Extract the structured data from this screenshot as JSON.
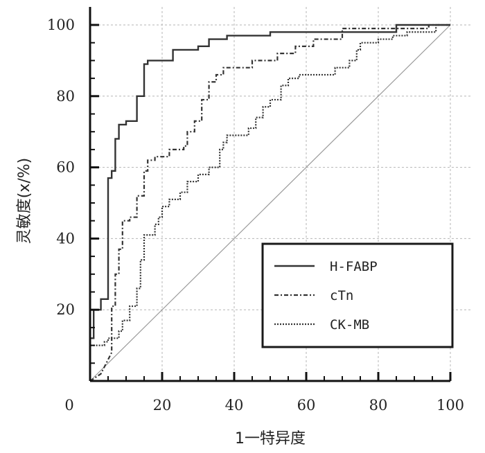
{
  "chart_data": {
    "type": "line",
    "title": "",
    "xlabel": "1一特异度",
    "ylabel": "灵敏度(x/%)",
    "xlim": [
      0,
      100
    ],
    "ylim": [
      0,
      100
    ],
    "xticks": [
      "0",
      "20",
      "40",
      "60",
      "80",
      "100"
    ],
    "yticks": [
      "20",
      "40",
      "60",
      "80",
      "100"
    ],
    "grid": true,
    "legend_position": "bottom-right",
    "series": [
      {
        "name": "H-FABP",
        "style": "solid",
        "color": "#333333",
        "points": [
          [
            0,
            0
          ],
          [
            0,
            12
          ],
          [
            1,
            12
          ],
          [
            1,
            20
          ],
          [
            3,
            20
          ],
          [
            3,
            23
          ],
          [
            5,
            23
          ],
          [
            5,
            57
          ],
          [
            6,
            57
          ],
          [
            6,
            59
          ],
          [
            7,
            59
          ],
          [
            7,
            68
          ],
          [
            8,
            68
          ],
          [
            8,
            72
          ],
          [
            10,
            72
          ],
          [
            10,
            73
          ],
          [
            13,
            73
          ],
          [
            13,
            80
          ],
          [
            15,
            80
          ],
          [
            15,
            89
          ],
          [
            16,
            89
          ],
          [
            16,
            90
          ],
          [
            23,
            90
          ],
          [
            23,
            93
          ],
          [
            30,
            93
          ],
          [
            30,
            94
          ],
          [
            33,
            94
          ],
          [
            33,
            96
          ],
          [
            38,
            96
          ],
          [
            38,
            97
          ],
          [
            50,
            97
          ],
          [
            50,
            98
          ],
          [
            85,
            98
          ],
          [
            85,
            100
          ],
          [
            100,
            100
          ]
        ]
      },
      {
        "name": "cTn",
        "style": "dashdot",
        "color": "#333333",
        "points": [
          [
            0,
            0
          ],
          [
            3,
            2
          ],
          [
            4,
            4
          ],
          [
            5,
            6
          ],
          [
            6,
            8
          ],
          [
            6,
            21
          ],
          [
            7,
            21
          ],
          [
            7,
            30
          ],
          [
            8,
            30
          ],
          [
            8,
            37
          ],
          [
            9,
            37
          ],
          [
            9,
            45
          ],
          [
            11,
            45
          ],
          [
            11,
            46
          ],
          [
            13,
            46
          ],
          [
            13,
            52
          ],
          [
            15,
            52
          ],
          [
            15,
            59
          ],
          [
            16,
            59
          ],
          [
            16,
            62
          ],
          [
            18,
            62
          ],
          [
            18,
            63
          ],
          [
            22,
            63
          ],
          [
            22,
            65
          ],
          [
            26,
            65
          ],
          [
            26,
            66
          ],
          [
            27,
            66
          ],
          [
            27,
            70
          ],
          [
            29,
            70
          ],
          [
            29,
            73
          ],
          [
            31,
            73
          ],
          [
            31,
            79
          ],
          [
            33,
            79
          ],
          [
            33,
            84
          ],
          [
            35,
            84
          ],
          [
            35,
            86
          ],
          [
            37,
            86
          ],
          [
            37,
            88
          ],
          [
            45,
            88
          ],
          [
            45,
            90
          ],
          [
            52,
            90
          ],
          [
            52,
            92
          ],
          [
            57,
            92
          ],
          [
            57,
            94
          ],
          [
            62,
            94
          ],
          [
            62,
            96
          ],
          [
            70,
            96
          ],
          [
            70,
            99
          ],
          [
            94,
            99
          ],
          [
            94,
            100
          ],
          [
            100,
            100
          ]
        ]
      },
      {
        "name": "CK-MB",
        "style": "dotted",
        "color": "#333333",
        "points": [
          [
            0,
            0
          ],
          [
            0,
            10
          ],
          [
            4,
            10
          ],
          [
            4,
            11
          ],
          [
            5,
            11
          ],
          [
            5,
            12
          ],
          [
            8,
            12
          ],
          [
            8,
            14
          ],
          [
            9,
            14
          ],
          [
            9,
            17
          ],
          [
            11,
            17
          ],
          [
            11,
            21
          ],
          [
            13,
            21
          ],
          [
            13,
            26
          ],
          [
            14,
            26
          ],
          [
            14,
            34
          ],
          [
            15,
            34
          ],
          [
            15,
            41
          ],
          [
            18,
            41
          ],
          [
            18,
            44
          ],
          [
            19,
            44
          ],
          [
            19,
            46
          ],
          [
            20,
            46
          ],
          [
            20,
            49
          ],
          [
            22,
            49
          ],
          [
            22,
            51
          ],
          [
            25,
            51
          ],
          [
            25,
            53
          ],
          [
            27,
            53
          ],
          [
            27,
            56
          ],
          [
            30,
            56
          ],
          [
            30,
            58
          ],
          [
            33,
            58
          ],
          [
            33,
            60
          ],
          [
            36,
            60
          ],
          [
            36,
            65
          ],
          [
            37,
            65
          ],
          [
            37,
            67
          ],
          [
            38,
            67
          ],
          [
            38,
            69
          ],
          [
            44,
            69
          ],
          [
            44,
            71
          ],
          [
            46,
            71
          ],
          [
            46,
            74
          ],
          [
            48,
            74
          ],
          [
            48,
            77
          ],
          [
            50,
            77
          ],
          [
            50,
            79
          ],
          [
            53,
            79
          ],
          [
            53,
            83
          ],
          [
            55,
            83
          ],
          [
            55,
            85
          ],
          [
            58,
            85
          ],
          [
            58,
            86
          ],
          [
            68,
            86
          ],
          [
            68,
            88
          ],
          [
            72,
            88
          ],
          [
            72,
            90
          ],
          [
            74,
            90
          ],
          [
            74,
            93
          ],
          [
            75,
            93
          ],
          [
            75,
            95
          ],
          [
            80,
            95
          ],
          [
            80,
            96
          ],
          [
            84,
            96
          ],
          [
            84,
            97
          ],
          [
            88,
            97
          ],
          [
            88,
            98
          ],
          [
            96,
            98
          ],
          [
            96,
            100
          ],
          [
            100,
            100
          ]
        ]
      },
      {
        "name": "",
        "style": "reference",
        "color": "#9a9a9a",
        "points": [
          [
            0,
            0
          ],
          [
            100,
            100
          ]
        ]
      }
    ]
  }
}
